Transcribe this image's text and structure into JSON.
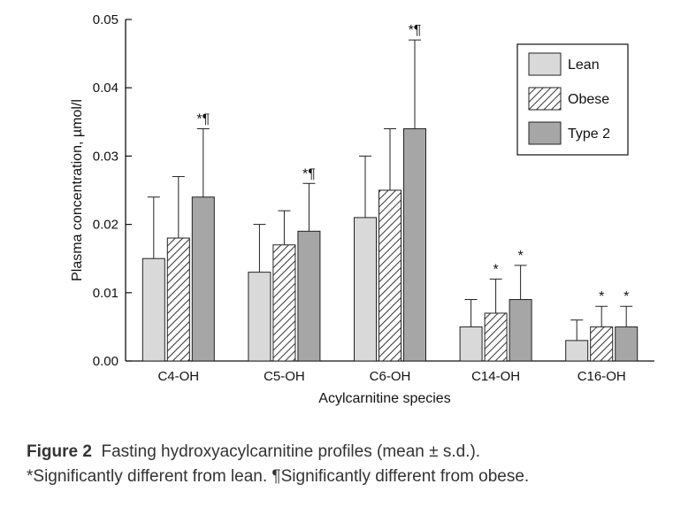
{
  "chart_data": {
    "type": "bar",
    "categories": [
      "C4-OH",
      "C5-OH",
      "C6-OH",
      "C14-OH",
      "C16-OH"
    ],
    "series": [
      {
        "name": "Lean",
        "values": [
          0.015,
          0.013,
          0.021,
          0.005,
          0.003
        ],
        "sd": [
          0.009,
          0.007,
          0.009,
          0.004,
          0.003
        ],
        "marks": [
          "",
          "",
          "",
          "",
          ""
        ],
        "color": "#d9d9d9",
        "pattern": "solid"
      },
      {
        "name": "Obese",
        "values": [
          0.018,
          0.017,
          0.025,
          0.007,
          0.005
        ],
        "sd": [
          0.009,
          0.005,
          0.009,
          0.005,
          0.003
        ],
        "marks": [
          "",
          "",
          "",
          "*",
          "*"
        ],
        "color": "#ffffff",
        "pattern": "hatched"
      },
      {
        "name": "Type 2",
        "values": [
          0.024,
          0.019,
          0.034,
          0.009,
          0.005
        ],
        "sd": [
          0.01,
          0.007,
          0.013,
          0.005,
          0.003
        ],
        "marks": [
          "*¶",
          "*¶",
          "*¶",
          "*",
          "*"
        ],
        "color": "#a6a6a6",
        "pattern": "solid"
      }
    ],
    "xlabel": "Acylcarnitine species",
    "ylabel": "Plasma concentration, µmol/l",
    "ylim": [
      0,
      0.05
    ],
    "yticks": [
      "0.00",
      "0.01",
      "0.02",
      "0.03",
      "0.04",
      "0.05"
    ],
    "legend_position": "top-right",
    "grid": false
  },
  "caption": {
    "label": "Figure 2",
    "text": "Fasting hydroxyacylcarnitine profiles (mean ± s.d.).",
    "line2": "*Significantly different from lean. ¶Significantly different from obese."
  }
}
